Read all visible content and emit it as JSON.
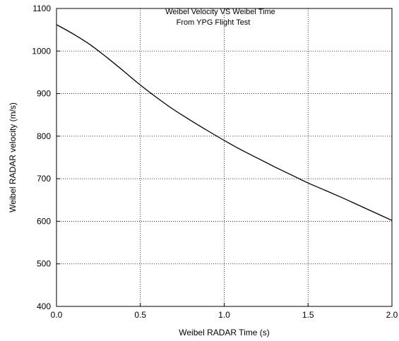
{
  "chart_data": {
    "type": "line",
    "title": "Weibel Velocity VS Weibel Time",
    "subtitle": "From YPG Flight Test",
    "xlabel": "Weibel RADAR Time (s)",
    "ylabel": "Weibel RADAR velocity (m/s)",
    "xlim": [
      0.0,
      2.0
    ],
    "ylim": [
      400,
      1100
    ],
    "xticks": [
      0.0,
      0.5,
      1.0,
      1.5,
      2.0
    ],
    "xtick_labels": [
      "0.0",
      "0.5",
      "1.0",
      "1.5",
      "2.0"
    ],
    "yticks": [
      400,
      500,
      600,
      700,
      800,
      900,
      1000,
      1100
    ],
    "ytick_labels": [
      "400",
      "500",
      "600",
      "700",
      "800",
      "900",
      "1000",
      "1100"
    ],
    "grid": true,
    "series": [
      {
        "color": "#000000",
        "x": [
          0.0,
          0.1,
          0.2,
          0.3,
          0.4,
          0.5,
          0.6,
          0.7,
          0.8,
          0.9,
          1.0,
          1.1,
          1.2,
          1.3,
          1.4,
          1.5,
          1.6,
          1.7,
          1.8,
          1.9,
          2.0
        ],
        "y": [
          1062,
          1040,
          1015,
          985,
          953,
          920,
          890,
          862,
          837,
          813,
          790,
          768,
          748,
          728,
          709,
          690,
          673,
          656,
          638,
          620,
          602
        ]
      }
    ]
  }
}
